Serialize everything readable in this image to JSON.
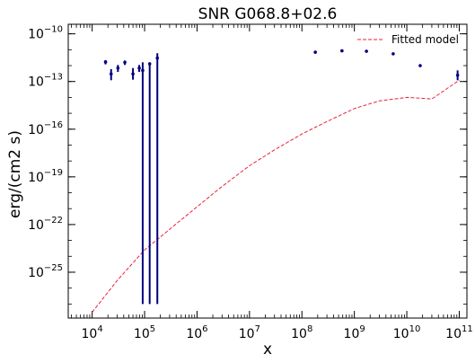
{
  "chart_data": {
    "type": "scatter",
    "title": "SNR G068.8+02.6",
    "xlabel": "x",
    "ylabel": "erg/(cm2 s)",
    "xscale": "log",
    "yscale": "log",
    "xlim": [
      3500.0,
      140000000000.0
    ],
    "ylim": [
      1.3e-28,
      4e-10
    ],
    "grid": false,
    "legend_position": "top-right",
    "colors": {
      "points": "#00007f",
      "model": "#e8223a"
    },
    "x_ticks": [
      {
        "value": 10000,
        "base": "10",
        "exp": "4"
      },
      {
        "value": 100000,
        "base": "10",
        "exp": "5"
      },
      {
        "value": 1000000,
        "base": "10",
        "exp": "6"
      },
      {
        "value": 10000000,
        "base": "10",
        "exp": "7"
      },
      {
        "value": 100000000,
        "base": "10",
        "exp": "8"
      },
      {
        "value": 1000000000,
        "base": "10",
        "exp": "9"
      },
      {
        "value": 10000000000,
        "base": "10",
        "exp": "10"
      },
      {
        "value": 100000000000,
        "base": "10",
        "exp": "11"
      }
    ],
    "y_ticks": [
      {
        "value": 1e-10,
        "base": "10",
        "exp": "−10"
      },
      {
        "value": 1e-13,
        "base": "10",
        "exp": "−13"
      },
      {
        "value": 1e-16,
        "base": "10",
        "exp": "−16"
      },
      {
        "value": 1e-19,
        "base": "10",
        "exp": "−19"
      },
      {
        "value": 1e-22,
        "base": "10",
        "exp": "−22"
      },
      {
        "value": 1e-25,
        "base": "10",
        "exp": "−25"
      }
    ],
    "series": [
      {
        "name": "Fitted model",
        "kind": "line",
        "style": "dashed",
        "x": [
          10000.0,
          30000.0,
          100000.0,
          300000.0,
          1000000.0,
          3000000.0,
          10000000.0,
          30000000.0,
          100000000.0,
          300000000.0,
          1000000000.0,
          3000000000.0,
          10000000000.0,
          30000000000.0,
          100000000000.0
        ],
        "y": [
          3e-28,
          3e-26,
          2.5e-24,
          5e-23,
          1.3e-21,
          2.5e-20,
          5e-19,
          5e-18,
          5e-17,
          3e-16,
          2e-15,
          6e-15,
          1e-14,
          8e-15,
          1.2e-13
        ]
      },
      {
        "kind": "errorbar",
        "x": [
          18000.0,
          23000.0,
          31000.0,
          42000.0,
          60000.0,
          79000.0,
          92000.0,
          125000.0,
          175000.0,
          180000000.0,
          580000000.0,
          1700000000.0,
          5500000000.0,
          18000000000.0,
          93000000000.0
        ],
        "y": [
          1.7e-12,
          3e-13,
          7e-13,
          1.6e-12,
          3e-13,
          7e-13,
          5e-13,
          1.3e-12,
          3e-12,
          7e-12,
          8.5e-12,
          8e-12,
          5.5e-12,
          1e-12,
          2.5e-13
        ],
        "ylo": [
          1.2e-12,
          1.2e-13,
          4e-13,
          1.1e-12,
          1.3e-13,
          4e-13,
          1e-27,
          1e-27,
          1e-27,
          6.5e-12,
          8e-12,
          7.5e-12,
          5e-12,
          9e-13,
          1.2e-13
        ],
        "yhi": [
          2.2e-12,
          6e-13,
          1.1e-12,
          2.1e-12,
          7e-13,
          1.1e-12,
          1.6e-12,
          1.6e-12,
          6e-12,
          7.5e-12,
          9e-12,
          8.5e-12,
          6e-12,
          1.1e-12,
          5e-13
        ]
      }
    ]
  }
}
